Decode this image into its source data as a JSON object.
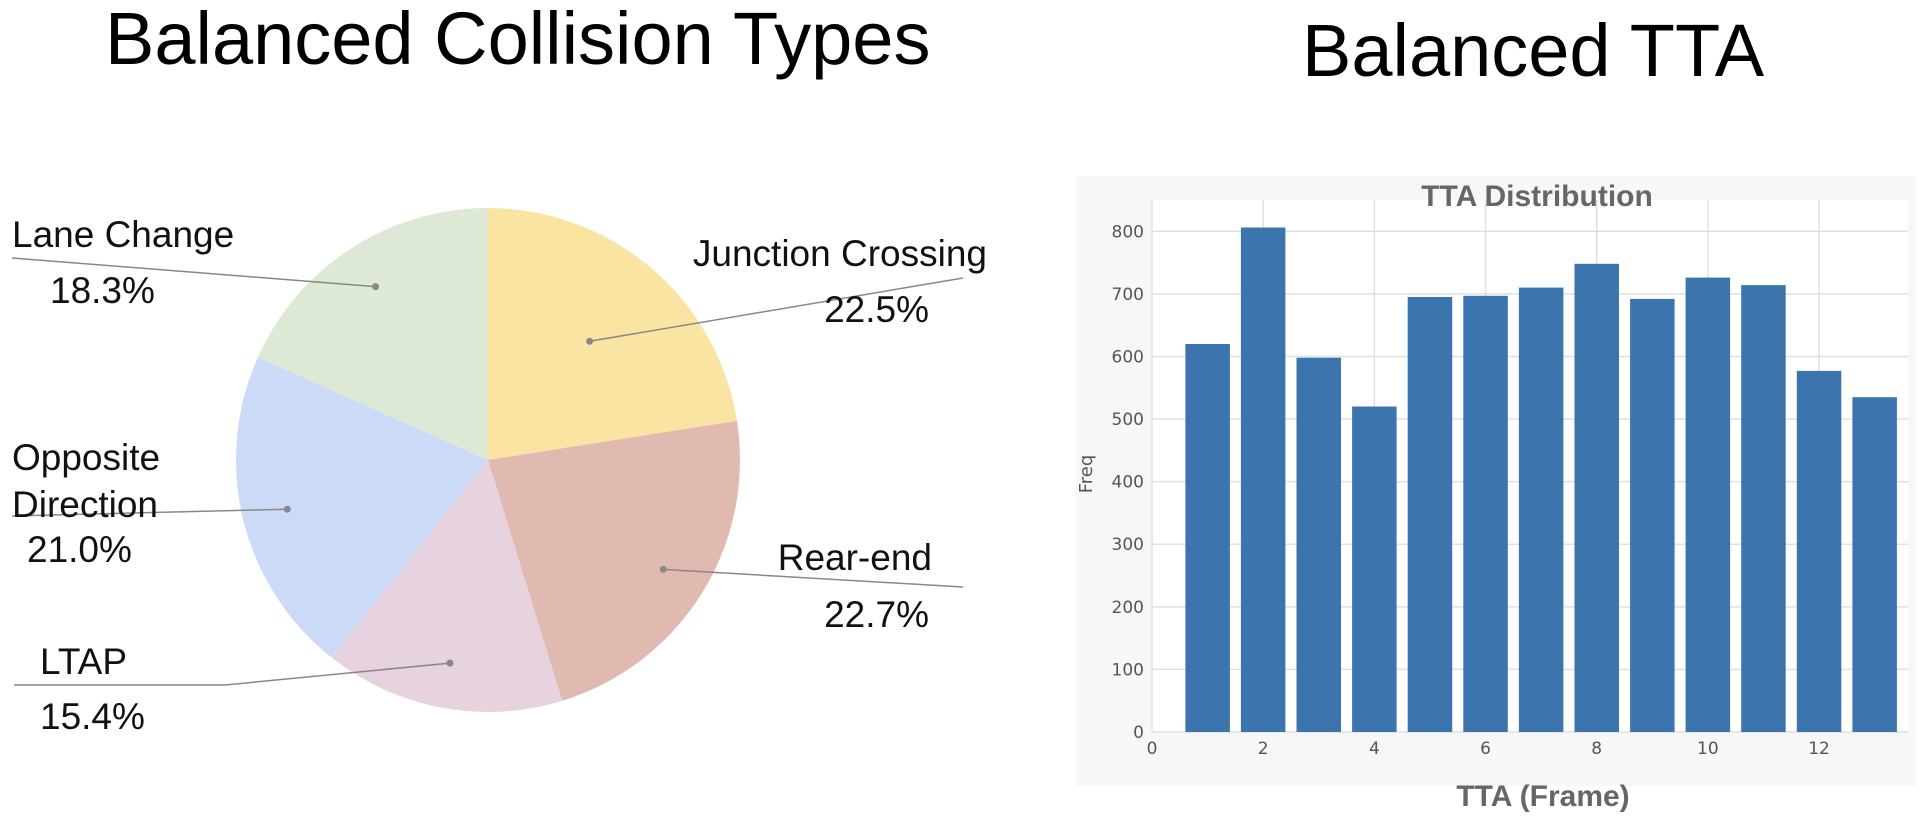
{
  "headings": {
    "pie": "Balanced Collision Types",
    "bar": "Balanced TTA"
  },
  "chart_data": [
    {
      "type": "pie",
      "title": "Balanced Collision Types",
      "slices": [
        {
          "label": "Junction Crossing",
          "value": 22.5,
          "percent": "22.5%",
          "color": "#f9e4a1"
        },
        {
          "label": "Rear-end",
          "value": 22.7,
          "percent": "22.7%",
          "color": "#e0bab0"
        },
        {
          "label": "LTAP",
          "value": 15.4,
          "percent": "15.4%",
          "color": "#e7d3df"
        },
        {
          "label": "Opposite Direction",
          "value": 21.0,
          "percent": "21.0%",
          "color": "#cbdaf6"
        },
        {
          "label": "Lane Change",
          "value": 18.3,
          "percent": "18.3%",
          "color": "#dde8d5"
        }
      ]
    },
    {
      "type": "bar",
      "title": "TTA Distribution",
      "xlabel": "TTA (Frame)",
      "ylabel": "Freq",
      "x": [
        1,
        2,
        3,
        4,
        5,
        6,
        7,
        8,
        9,
        10,
        11,
        12,
        13
      ],
      "values": [
        620,
        806,
        598,
        520,
        695,
        697,
        710,
        748,
        692,
        726,
        714,
        577,
        535
      ],
      "xlim": [
        0,
        13.6
      ],
      "ylim": [
        0,
        850
      ],
      "xticks": [
        0,
        2,
        4,
        6,
        8,
        10,
        12
      ],
      "yticks": [
        0,
        100,
        200,
        300,
        400,
        500,
        600,
        700,
        800
      ],
      "grid": true,
      "bar_color": "#3c74ad"
    }
  ]
}
